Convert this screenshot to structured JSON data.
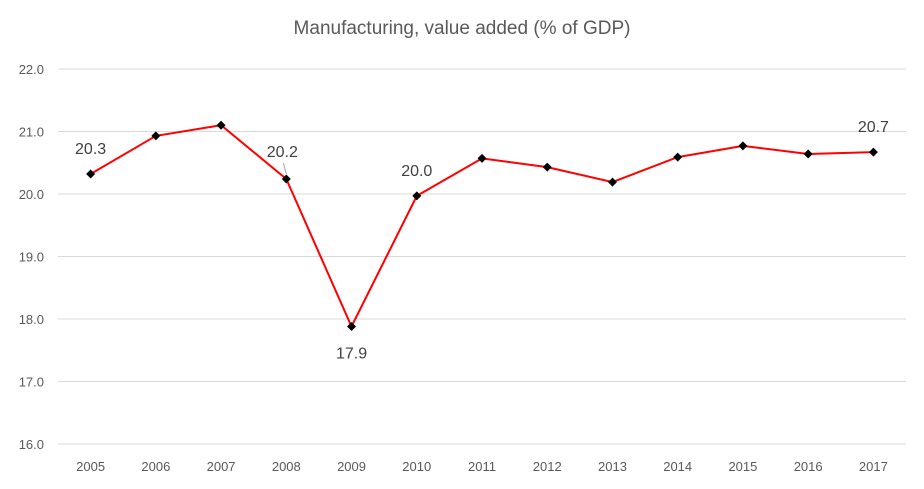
{
  "chart_data": {
    "type": "line",
    "title": "Manufacturing, value added (% of GDP)",
    "xlabel": "",
    "ylabel": "",
    "x": [
      "2005",
      "2006",
      "2007",
      "2008",
      "2009",
      "2010",
      "2011",
      "2012",
      "2013",
      "2014",
      "2015",
      "2016",
      "2017"
    ],
    "series": [
      {
        "values": [
          20.32,
          20.93,
          21.1,
          20.24,
          17.88,
          19.97,
          20.57,
          20.43,
          20.19,
          20.59,
          20.77,
          20.64,
          20.67
        ]
      }
    ],
    "ylim": [
      16.0,
      22.0
    ],
    "yticks": [
      "16.0",
      "17.0",
      "18.0",
      "19.0",
      "20.0",
      "21.0",
      "22.0"
    ],
    "data_labels": [
      {
        "index": 0,
        "text": "20.3"
      },
      {
        "index": 3,
        "text": "20.2"
      },
      {
        "index": 4,
        "text": "17.9"
      },
      {
        "index": 5,
        "text": "20.0"
      },
      {
        "index": 12,
        "text": "20.7"
      }
    ],
    "grid": true,
    "legend": "none",
    "line_color": "#ff0000",
    "marker_color": "#000000",
    "grid_color": "#d9d9d9",
    "text_color": "#595959"
  }
}
